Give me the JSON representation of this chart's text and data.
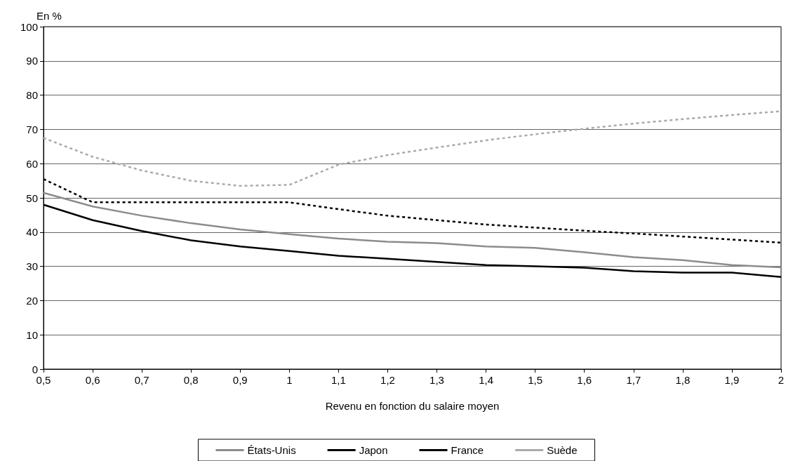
{
  "chart_data": {
    "type": "line",
    "ylabel": "En %",
    "xlabel": "Revenu en fonction du salaire moyen",
    "categories": [
      "0,5",
      "0,6",
      "0,7",
      "0,8",
      "0,9",
      "1",
      "1,1",
      "1,2",
      "1,3",
      "1,4",
      "1,5",
      "1,6",
      "1,7",
      "1,8",
      "1,9",
      "2"
    ],
    "ylim": [
      0,
      100
    ],
    "yticks": [
      0,
      10,
      20,
      30,
      40,
      50,
      60,
      70,
      80,
      90,
      100
    ],
    "grid": "y",
    "legend": "bottom",
    "marker": "none",
    "series": [
      {
        "name": "États-Unis",
        "color": "#8c8c8c",
        "line_style": "solid",
        "values": [
          51.5,
          47.5,
          44.8,
          42.6,
          40.8,
          39.4,
          38.1,
          37.2,
          36.8,
          35.8,
          35.4,
          34.1,
          32.7,
          31.8,
          30.4,
          29.7
        ]
      },
      {
        "name": "Japon",
        "color": "#000000",
        "line_style": "solid",
        "values": [
          48,
          43.5,
          40.3,
          37.6,
          35.8,
          34.5,
          33.1,
          32.2,
          31.3,
          30.4,
          30,
          29.6,
          28.6,
          28.2,
          28.2,
          26.9
        ]
      },
      {
        "name": "France",
        "color": "#000000",
        "line_style": "dashed",
        "values": [
          55.5,
          48.7,
          48.7,
          48.7,
          48.7,
          48.7,
          46.7,
          44.8,
          43.5,
          42.2,
          41.3,
          40.4,
          39.6,
          38.7,
          37.8,
          36.9
        ]
      },
      {
        "name": "Suède",
        "color": "#aaaaaa",
        "line_style": "dashed",
        "values": [
          67.5,
          62,
          58,
          55,
          53.5,
          53.8,
          59.7,
          62.5,
          64.7,
          66.8,
          68.6,
          70.2,
          71.7,
          73,
          74.2,
          75.3
        ]
      }
    ]
  }
}
